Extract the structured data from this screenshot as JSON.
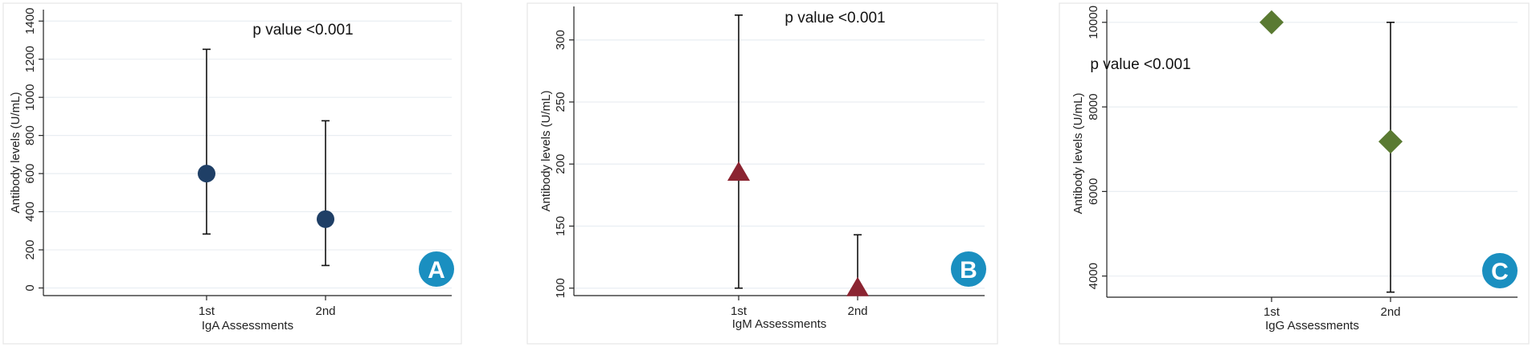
{
  "chart_data": [
    {
      "panel": "A",
      "type": "scatter",
      "categories": [
        "1st",
        "2nd"
      ],
      "xlabel": "IgA Assessments",
      "ylabel": "Antibody levels (U/mL)",
      "annotation": "p value <0.001",
      "ylim": [
        -40,
        1460
      ],
      "yticks": [
        0,
        200,
        400,
        600,
        800,
        1000,
        1200,
        1400
      ],
      "grid": true,
      "marker": "circle",
      "color": "#1f3f66",
      "points": [
        {
          "x": "1st",
          "mean": 600,
          "lower": 283,
          "upper": 1252
        },
        {
          "x": "2nd",
          "mean": 361,
          "lower": 118,
          "upper": 877
        }
      ]
    },
    {
      "panel": "B",
      "type": "scatter",
      "categories": [
        "1st",
        "2nd"
      ],
      "xlabel": "IgM Assessments",
      "ylabel": "Antibody levels (U/mL)",
      "annotation": "p value <0.001",
      "ylim": [
        94,
        327
      ],
      "yticks": [
        100,
        150,
        200,
        250,
        300
      ],
      "grid": true,
      "marker": "triangle",
      "color": "#8b2431",
      "points": [
        {
          "x": "1st",
          "mean": 193,
          "lower": 100,
          "upper": 320
        },
        {
          "x": "2nd",
          "mean": 100,
          "lower": 100,
          "upper": 143
        }
      ]
    },
    {
      "panel": "C",
      "type": "scatter",
      "categories": [
        "1st",
        "2nd"
      ],
      "xlabel": "IgG Assessments",
      "ylabel": "Antibody levels (U/mL)",
      "annotation": "p value <0.001",
      "ylim": [
        3500,
        10300
      ],
      "yticks": [
        4000,
        6000,
        8000,
        10000
      ],
      "grid": true,
      "marker": "diamond",
      "color": "#5a7a32",
      "points": [
        {
          "x": "1st",
          "mean": 10000,
          "lower": 10000,
          "upper": 10000
        },
        {
          "x": "2nd",
          "mean": 7180,
          "lower": 3620,
          "upper": 10000
        }
      ]
    }
  ],
  "badge_color": "#1a8fc0"
}
